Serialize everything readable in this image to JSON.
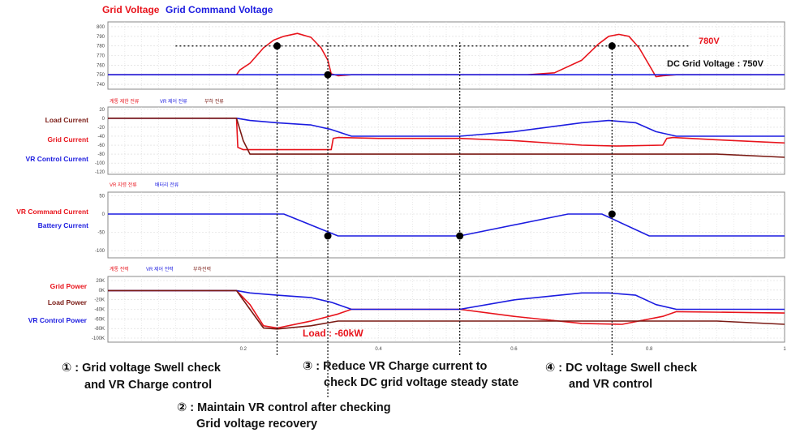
{
  "legend": {
    "grid_voltage": "Grid Voltage",
    "grid_command_voltage": "Grid Command Voltage"
  },
  "colors": {
    "red": "#e8141c",
    "blue": "#1c1ce0",
    "brown": "#7a1a14",
    "dark_red": "#8a1010",
    "grid": "#cccccc"
  },
  "chart_data": [
    {
      "type": "line",
      "panel": "voltage",
      "xlim": [
        0.0,
        1.0
      ],
      "ylim": [
        735,
        805
      ],
      "yticks": [
        800,
        790,
        780,
        770,
        760,
        750,
        740
      ],
      "xticks": [
        "0.2",
        "0.4",
        "0.6",
        "0.8",
        "1"
      ],
      "series": [
        {
          "name": "Grid Voltage",
          "color": "#e8141c",
          "points": [
            [
              0.0,
              750
            ],
            [
              0.19,
              750
            ],
            [
              0.195,
              755
            ],
            [
              0.21,
              762
            ],
            [
              0.23,
              778
            ],
            [
              0.245,
              786
            ],
            [
              0.26,
              790
            ],
            [
              0.28,
              793
            ],
            [
              0.3,
              789
            ],
            [
              0.315,
              778
            ],
            [
              0.325,
              765
            ],
            [
              0.33,
              751
            ],
            [
              0.34,
              749
            ],
            [
              0.36,
              750
            ],
            [
              0.62,
              750
            ],
            [
              0.66,
              752
            ],
            [
              0.7,
              765
            ],
            [
              0.725,
              782
            ],
            [
              0.74,
              790
            ],
            [
              0.755,
              792
            ],
            [
              0.77,
              790
            ],
            [
              0.785,
              778
            ],
            [
              0.8,
              760
            ],
            [
              0.81,
              748
            ],
            [
              0.82,
              749
            ],
            [
              0.84,
              750
            ],
            [
              1.0,
              750
            ]
          ]
        },
        {
          "name": "Grid Command Voltage",
          "color": "#1c1ce0",
          "points": [
            [
              0.0,
              750
            ],
            [
              1.0,
              750
            ]
          ]
        }
      ],
      "annotations": {
        "threshold": "780V",
        "dc_grid_voltage": "DC Grid Voltage : 750V"
      }
    },
    {
      "type": "line",
      "panel": "current",
      "ylim": [
        -125,
        25
      ],
      "yticks": [
        20,
        0,
        -20,
        -40,
        -60,
        -80,
        -100,
        -120
      ],
      "sublabels": [
        "계통 제한 전류",
        "VR 제어 전류",
        "부하 전류"
      ],
      "series_labels": [
        "Load Current",
        "Grid Current",
        "VR Control Current"
      ],
      "series": [
        {
          "color": "#e8141c",
          "points": [
            [
              0.0,
              0
            ],
            [
              0.19,
              0
            ],
            [
              0.192,
              -65
            ],
            [
              0.2,
              -70
            ],
            [
              0.22,
              -70
            ],
            [
              0.33,
              -70
            ],
            [
              0.333,
              -45
            ],
            [
              0.34,
              -43
            ],
            [
              0.4,
              -45
            ],
            [
              0.52,
              -45
            ],
            [
              0.6,
              -50
            ],
            [
              0.7,
              -60
            ],
            [
              0.75,
              -62
            ],
            [
              0.82,
              -60
            ],
            [
              0.826,
              -45
            ],
            [
              0.835,
              -43
            ],
            [
              0.9,
              -48
            ],
            [
              1.0,
              -55
            ]
          ]
        },
        {
          "color": "#1c1ce0",
          "points": [
            [
              0.0,
              0
            ],
            [
              0.19,
              0
            ],
            [
              0.21,
              -5
            ],
            [
              0.25,
              -10
            ],
            [
              0.3,
              -15
            ],
            [
              0.33,
              -25
            ],
            [
              0.36,
              -40
            ],
            [
              0.52,
              -40
            ],
            [
              0.6,
              -30
            ],
            [
              0.7,
              -10
            ],
            [
              0.74,
              -5
            ],
            [
              0.78,
              -10
            ],
            [
              0.81,
              -30
            ],
            [
              0.84,
              -40
            ],
            [
              1.0,
              -40
            ]
          ]
        },
        {
          "color": "#7a1a14",
          "points": [
            [
              0.0,
              0
            ],
            [
              0.19,
              0
            ],
            [
              0.2,
              -50
            ],
            [
              0.21,
              -80
            ],
            [
              0.25,
              -80
            ],
            [
              0.9,
              -80
            ],
            [
              1.0,
              -87
            ]
          ]
        }
      ]
    },
    {
      "type": "line",
      "panel": "command",
      "ylim": [
        -120,
        60
      ],
      "yticks": [
        50,
        0,
        -50,
        -100
      ],
      "sublabels": [
        "VR 지령 전류",
        "배터리 전류"
      ],
      "series_labels": [
        "VR Command Current",
        "Battery Current"
      ],
      "series": [
        {
          "color": "#1c1ce0",
          "points": [
            [
              0.0,
              0
            ],
            [
              0.26,
              0
            ],
            [
              0.34,
              -60
            ],
            [
              0.52,
              -60
            ],
            [
              0.68,
              0
            ],
            [
              0.73,
              0
            ],
            [
              0.8,
              -60
            ],
            [
              1.0,
              -60
            ]
          ]
        }
      ]
    },
    {
      "type": "line",
      "panel": "power",
      "ylim": [
        -110,
        30
      ],
      "yticks": [
        "20K",
        "0K",
        "-20K",
        "-40K",
        "-60K",
        "-80K",
        "-100K"
      ],
      "sublabels": [
        "계통 전력",
        "VR 제어 전력",
        "부하전력"
      ],
      "series_labels": [
        "Grid Power",
        "Load Power",
        "VR Control Power"
      ],
      "series": [
        {
          "color": "#e8141c",
          "points": [
            [
              0.0,
              0
            ],
            [
              0.19,
              0
            ],
            [
              0.21,
              -30
            ],
            [
              0.23,
              -75
            ],
            [
              0.25,
              -80
            ],
            [
              0.3,
              -65
            ],
            [
              0.34,
              -50
            ],
            [
              0.36,
              -40
            ],
            [
              0.52,
              -40
            ],
            [
              0.6,
              -55
            ],
            [
              0.7,
              -70
            ],
            [
              0.76,
              -72
            ],
            [
              0.82,
              -55
            ],
            [
              0.84,
              -45
            ],
            [
              1.0,
              -48
            ]
          ]
        },
        {
          "color": "#1c1ce0",
          "points": [
            [
              0.0,
              0
            ],
            [
              0.19,
              0
            ],
            [
              0.21,
              -5
            ],
            [
              0.25,
              -10
            ],
            [
              0.3,
              -15
            ],
            [
              0.33,
              -25
            ],
            [
              0.36,
              -40
            ],
            [
              0.52,
              -40
            ],
            [
              0.6,
              -20
            ],
            [
              0.7,
              -5
            ],
            [
              0.74,
              -5
            ],
            [
              0.78,
              -10
            ],
            [
              0.81,
              -30
            ],
            [
              0.84,
              -40
            ],
            [
              1.0,
              -40
            ]
          ]
        },
        {
          "color": "#7a1a14",
          "points": [
            [
              0.0,
              0
            ],
            [
              0.19,
              0
            ],
            [
              0.21,
              -40
            ],
            [
              0.23,
              -80
            ],
            [
              0.25,
              -82
            ],
            [
              0.3,
              -75
            ],
            [
              0.34,
              -65
            ],
            [
              0.9,
              -65
            ],
            [
              1.0,
              -72
            ]
          ]
        }
      ],
      "annotations": {
        "load": "Load : -60kW"
      }
    }
  ],
  "events": [
    {
      "marker": "①",
      "text_line1": ": Grid voltage Swell check",
      "text_line2": "and VR Charge control"
    },
    {
      "marker": "②",
      "text_line1": ": Maintain VR control after checking",
      "text_line2": "Grid voltage recovery"
    },
    {
      "marker": "③",
      "text_line1": ": Reduce VR Charge current to",
      "text_line2": "check DC grid voltage steady state"
    },
    {
      "marker": "④",
      "text_line1": ": DC voltage Swell check",
      "text_line2": "and VR control"
    }
  ]
}
